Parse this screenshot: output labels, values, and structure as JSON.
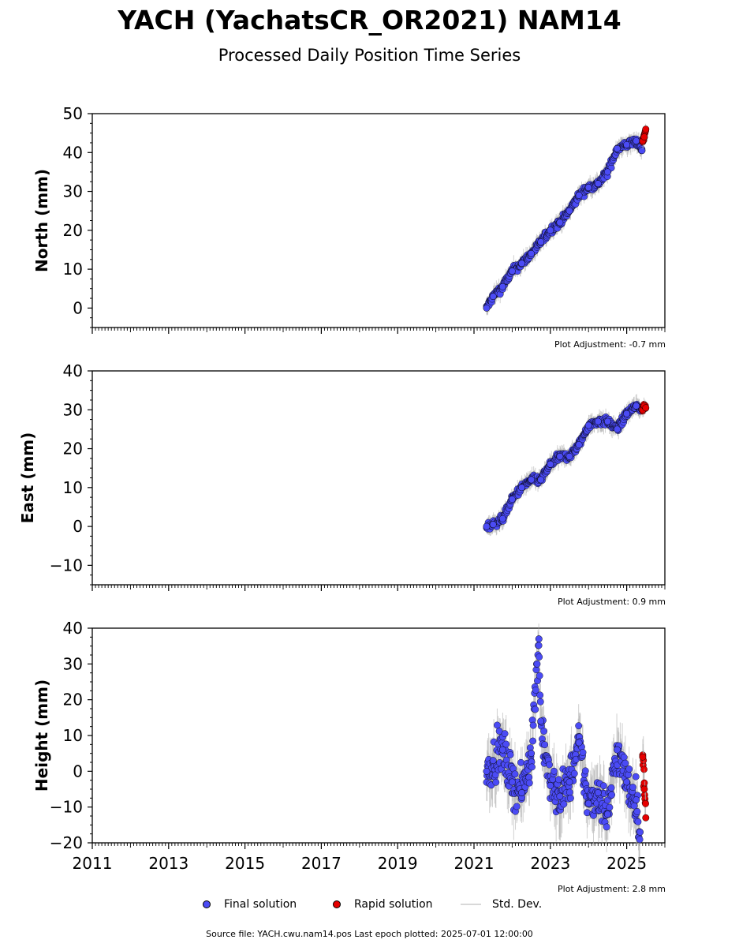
{
  "title": "YACH (YachatsCR_OR2021) NAM14",
  "subtitle": "Processed Daily Position Time Series",
  "legend": {
    "final": "Final solution",
    "rapid": "Rapid solution",
    "stddev": "Std. Dev."
  },
  "footer": "Source file: YACH.cwu.nam14.pos  Last epoch plotted: 2025-07-01 12:00:00",
  "colors": {
    "final": "#4b4bf5",
    "rapid": "#e60000",
    "stddev": "#aaaaaa",
    "marker_edge": "#000000"
  },
  "chart_data": [
    {
      "type": "scatter",
      "ylabel": "North (mm)",
      "adjustment": "Plot Adjustment: -0.7 mm",
      "xlim": [
        2011,
        2026
      ],
      "ylim": [
        -5,
        50
      ],
      "yticks": [
        0,
        10,
        20,
        30,
        40,
        50
      ],
      "xticks": [
        2011,
        2013,
        2015,
        2017,
        2019,
        2021,
        2023,
        2025
      ],
      "show_xtick_labels": false,
      "series": [
        {
          "name": "Final solution",
          "points": [
            [
              2021.33,
              0
            ],
            [
              2021.5,
              3
            ],
            [
              2021.75,
              5.5
            ],
            [
              2022.0,
              9.5
            ],
            [
              2022.25,
              11.5
            ],
            [
              2022.5,
              14
            ],
            [
              2022.75,
              17
            ],
            [
              2023.0,
              20
            ],
            [
              2023.25,
              22
            ],
            [
              2023.5,
              25
            ],
            [
              2023.75,
              29
            ],
            [
              2024.0,
              31
            ],
            [
              2024.25,
              32
            ],
            [
              2024.5,
              35
            ],
            [
              2024.75,
              41
            ],
            [
              2025.0,
              42
            ],
            [
              2025.25,
              43
            ],
            [
              2025.4,
              40.5
            ]
          ]
        },
        {
          "name": "Rapid solution",
          "points": [
            [
              2025.42,
              43
            ],
            [
              2025.46,
              44
            ],
            [
              2025.5,
              46
            ]
          ]
        }
      ]
    },
    {
      "type": "scatter",
      "ylabel": "East (mm)",
      "adjustment": "Plot Adjustment: 0.9 mm",
      "xlim": [
        2011,
        2026
      ],
      "ylim": [
        -15,
        40
      ],
      "yticks": [
        -10,
        0,
        10,
        20,
        30,
        40
      ],
      "xticks": [
        2011,
        2013,
        2015,
        2017,
        2019,
        2021,
        2023,
        2025
      ],
      "show_xtick_labels": false,
      "series": [
        {
          "name": "Final solution",
          "points": [
            [
              2021.33,
              0
            ],
            [
              2021.5,
              0.5
            ],
            [
              2021.75,
              2
            ],
            [
              2022.0,
              7
            ],
            [
              2022.25,
              10
            ],
            [
              2022.5,
              12
            ],
            [
              2022.75,
              12
            ],
            [
              2023.0,
              16
            ],
            [
              2023.25,
              18
            ],
            [
              2023.5,
              18
            ],
            [
              2023.75,
              21
            ],
            [
              2024.0,
              26
            ],
            [
              2024.25,
              27
            ],
            [
              2024.5,
              27
            ],
            [
              2024.75,
              25
            ],
            [
              2025.0,
              29
            ],
            [
              2025.25,
              31
            ],
            [
              2025.4,
              30
            ]
          ]
        },
        {
          "name": "Rapid solution",
          "points": [
            [
              2025.42,
              30
            ],
            [
              2025.46,
              31
            ],
            [
              2025.5,
              30.5
            ]
          ]
        }
      ]
    },
    {
      "type": "scatter",
      "ylabel": "Height (mm)",
      "adjustment": "Plot Adjustment: 2.8 mm",
      "xlim": [
        2011,
        2026
      ],
      "ylim": [
        -20,
        40
      ],
      "yticks": [
        -20,
        -10,
        0,
        10,
        20,
        30,
        40
      ],
      "xticks": [
        2011,
        2013,
        2015,
        2017,
        2019,
        2021,
        2023,
        2025
      ],
      "show_xtick_labels": true,
      "series": [
        {
          "name": "Final solution",
          "points": [
            [
              2021.33,
              0
            ],
            [
              2021.5,
              3
            ],
            [
              2021.75,
              6
            ],
            [
              2022.0,
              -3
            ],
            [
              2022.25,
              -6
            ],
            [
              2022.5,
              5
            ],
            [
              2022.7,
              37
            ],
            [
              2022.75,
              14
            ],
            [
              2023.0,
              -4
            ],
            [
              2023.25,
              -7
            ],
            [
              2023.5,
              -3
            ],
            [
              2023.75,
              8
            ],
            [
              2024.0,
              -9
            ],
            [
              2024.25,
              -6
            ],
            [
              2024.5,
              -12
            ],
            [
              2024.75,
              6
            ],
            [
              2025.0,
              -3
            ],
            [
              2025.25,
              -8
            ],
            [
              2025.35,
              -17
            ]
          ]
        },
        {
          "name": "Rapid solution",
          "points": [
            [
              2025.42,
              4
            ],
            [
              2025.46,
              -5
            ],
            [
              2025.5,
              -13
            ]
          ]
        }
      ]
    }
  ]
}
